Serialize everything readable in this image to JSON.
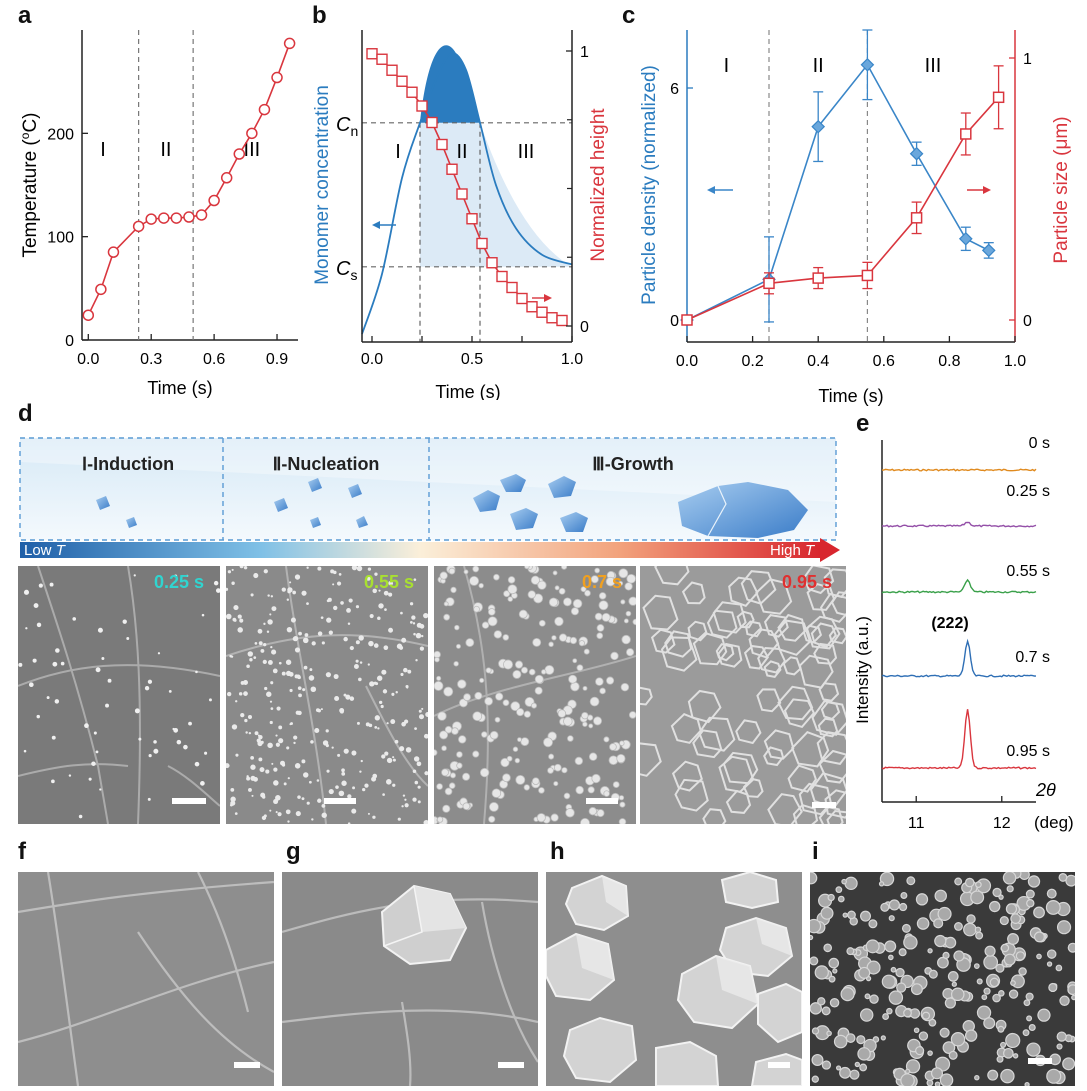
{
  "panels": {
    "a": "a",
    "b": "b",
    "c": "c",
    "d": "d",
    "e": "e",
    "f": "f",
    "g": "g",
    "h": "h",
    "i": "i"
  },
  "chart_data": [
    {
      "panel": "a",
      "type": "line",
      "xlabel": "Time (s)",
      "ylabel": "Temperature (°C)",
      "ylabel_main": "Temperature (",
      "ylabel_unit": "o",
      "ylabel_tail": "C)",
      "xlim": [
        -0.03,
        1.0
      ],
      "ylim": [
        0,
        300
      ],
      "xticks": [
        {
          "v": 0.0,
          "t": "0.0"
        },
        {
          "v": 0.3,
          "t": "0.3"
        },
        {
          "v": 0.6,
          "t": "0.6"
        },
        {
          "v": 0.9,
          "t": "0.9"
        }
      ],
      "yticks": [
        {
          "v": 0,
          "t": "0"
        },
        {
          "v": 100,
          "t": "100"
        },
        {
          "v": 200,
          "t": "200"
        }
      ],
      "vlines": [
        0.24,
        0.5
      ],
      "stage_labels": [
        {
          "t": "I",
          "x": 0.07,
          "y": 185
        },
        {
          "t": "II",
          "x": 0.37,
          "y": 185
        },
        {
          "t": "III",
          "x": 0.78,
          "y": 185
        }
      ],
      "series": [
        {
          "color": "#d9363e",
          "x": [
            0.0,
            0.06,
            0.12,
            0.24,
            0.3,
            0.36,
            0.42,
            0.48,
            0.54,
            0.6,
            0.66,
            0.72,
            0.78,
            0.84,
            0.9,
            0.96
          ],
          "y": [
            24,
            49,
            85,
            110,
            117,
            118,
            118,
            119,
            121,
            135,
            157,
            180,
            200,
            223,
            254,
            287
          ]
        }
      ]
    },
    {
      "panel": "b",
      "type": "line",
      "xlabel": "Time (s)",
      "ylabel_left": "Monomer concentration",
      "ylabel_right": "Normalized height",
      "xlim": [
        -0.05,
        1.0
      ],
      "xticks": [
        {
          "v": 0.0,
          "t": "0.0"
        },
        {
          "v": 0.25,
          "t": "0.25"
        },
        {
          "v": 0.5,
          "t": "0.5"
        },
        {
          "v": 0.75,
          "t": "0.75"
        },
        {
          "v": 1.0,
          "t": "1.0"
        }
      ],
      "yticks_right": [
        {
          "v": 0,
          "t": "0"
        },
        {
          "v": 1,
          "t": "1"
        }
      ],
      "level_labels": [
        {
          "t": "C",
          "sub": "n",
          "v": 0.78
        },
        {
          "t": "C",
          "sub": "s",
          "v": 0.18
        }
      ],
      "stage_labels": [
        {
          "t": "I",
          "x": 0.13
        },
        {
          "t": "II",
          "x": 0.45
        },
        {
          "t": "III",
          "x": 0.77
        }
      ],
      "vlines": [
        0.24,
        0.54
      ],
      "concentration": {
        "color": "#2b7cbf",
        "x": [
          -0.05,
          0.05,
          0.15,
          0.24,
          0.33,
          0.4,
          0.47,
          0.54,
          0.62,
          0.72,
          0.85,
          1.0
        ],
        "y": [
          -0.1,
          0.15,
          0.55,
          0.78,
          0.98,
          1.07,
          1.0,
          0.78,
          0.52,
          0.34,
          0.23,
          0.19
        ]
      },
      "height": {
        "color": "#d9363e",
        "x": [
          0.0,
          0.05,
          0.1,
          0.15,
          0.2,
          0.25,
          0.3,
          0.35,
          0.4,
          0.45,
          0.5,
          0.55,
          0.6,
          0.65,
          0.7,
          0.75,
          0.8,
          0.85,
          0.9,
          0.95
        ],
        "y": [
          0.99,
          0.97,
          0.93,
          0.89,
          0.85,
          0.8,
          0.74,
          0.66,
          0.57,
          0.48,
          0.39,
          0.3,
          0.23,
          0.18,
          0.14,
          0.1,
          0.07,
          0.05,
          0.03,
          0.02
        ]
      }
    },
    {
      "panel": "c",
      "type": "line",
      "xlabel": "Time (s)",
      "ylabel_left": "Particle density (normalized)",
      "ylabel_right": "Particle size (μm)",
      "xlim": [
        0,
        1.0
      ],
      "ylim_left": [
        0,
        8
      ],
      "ylim_right": [
        0,
        1.1
      ],
      "xticks": [
        {
          "v": 0.0,
          "t": "0.0"
        },
        {
          "v": 0.2,
          "t": "0.2"
        },
        {
          "v": 0.4,
          "t": "0.4"
        },
        {
          "v": 0.6,
          "t": "0.6"
        },
        {
          "v": 0.8,
          "t": "0.8"
        },
        {
          "v": 1.0,
          "t": "1.0"
        }
      ],
      "yticks_left": [
        {
          "v": 0,
          "t": "0"
        },
        {
          "v": 6,
          "t": "6"
        }
      ],
      "yticks_right": [
        {
          "v": 0,
          "t": "0"
        },
        {
          "v": 1,
          "t": "1"
        }
      ],
      "vlines": [
        0.25,
        0.55
      ],
      "stage_labels": [
        {
          "t": "I",
          "x": 0.12
        },
        {
          "t": "II",
          "x": 0.4
        },
        {
          "t": "III",
          "x": 0.75
        }
      ],
      "series": [
        {
          "axis": "left",
          "color": "#3a86c8",
          "marker": "diamond",
          "x": [
            0.0,
            0.25,
            0.4,
            0.55,
            0.7,
            0.85,
            0.92
          ],
          "y": [
            0.0,
            1.05,
            5.0,
            6.6,
            4.3,
            2.1,
            1.8
          ],
          "err": [
            0.1,
            1.1,
            0.9,
            0.9,
            0.3,
            0.3,
            0.2
          ]
        },
        {
          "axis": "right",
          "color": "#d9363e",
          "marker": "square",
          "x": [
            0.0,
            0.25,
            0.4,
            0.55,
            0.7,
            0.85,
            0.95
          ],
          "y": [
            0.0,
            0.14,
            0.16,
            0.17,
            0.39,
            0.71,
            0.85
          ],
          "err": [
            0.0,
            0.04,
            0.04,
            0.05,
            0.06,
            0.08,
            0.12
          ]
        }
      ]
    },
    {
      "panel": "e",
      "type": "line",
      "ylabel": "Intensity (a.u.)",
      "xlabel_symbol": "2θ",
      "xlabel_unit": "(deg)",
      "xlim": [
        10.6,
        12.4
      ],
      "xticks": [
        {
          "v": 11,
          "t": "11"
        },
        {
          "v": 12,
          "t": "12"
        }
      ],
      "peak_label": "(222)",
      "series": [
        {
          "name": "0 s",
          "color": "#e08a1e",
          "amp": 0
        },
        {
          "name": "0.25 s",
          "color": "#9450a8",
          "amp": 4
        },
        {
          "name": "0.55 s",
          "color": "#3aa04a",
          "amp": 12
        },
        {
          "name": "0.7 s",
          "color": "#2f6fb5",
          "amp": 34
        },
        {
          "name": "0.95 s",
          "color": "#d9363e",
          "amp": 58
        }
      ]
    }
  ],
  "schematic": {
    "stages": [
      {
        "label": "Ⅰ-Induction"
      },
      {
        "label": "Ⅱ-Nucleation"
      },
      {
        "label": "Ⅲ-Growth"
      }
    ],
    "low_label": "Low ",
    "high_label": "High ",
    "temp_symbol": "T"
  },
  "sem_row": [
    {
      "time": "0.25 s",
      "color": "#30d5d0"
    },
    {
      "time": "0.55 s",
      "color": "#a8e030"
    },
    {
      "time": "0.7 s",
      "color": "#f0a020"
    },
    {
      "time": "0.95 s",
      "color": "#e03030"
    }
  ]
}
